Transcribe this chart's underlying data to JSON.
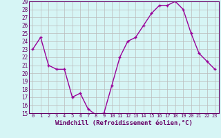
{
  "x": [
    0,
    1,
    2,
    3,
    4,
    5,
    6,
    7,
    8,
    9,
    10,
    11,
    12,
    13,
    14,
    15,
    16,
    17,
    18,
    19,
    20,
    21,
    22,
    23
  ],
  "y": [
    23.0,
    24.5,
    21.0,
    20.5,
    20.5,
    17.0,
    17.5,
    15.5,
    14.8,
    15.0,
    18.5,
    22.0,
    24.0,
    24.5,
    26.0,
    27.5,
    28.5,
    28.5,
    29.0,
    28.0,
    25.0,
    22.5,
    21.5,
    20.5
  ],
  "line_color": "#990099",
  "marker": "+",
  "markersize": 3,
  "linewidth": 1.0,
  "markeredgewidth": 1.0,
  "xlabel": "Windchill (Refroidissement éolien,°C)",
  "ylim": [
    15,
    29
  ],
  "xlim": [
    -0.5,
    23.5
  ],
  "yticks": [
    15,
    16,
    17,
    18,
    19,
    20,
    21,
    22,
    23,
    24,
    25,
    26,
    27,
    28,
    29
  ],
  "xticks": [
    0,
    1,
    2,
    3,
    4,
    5,
    6,
    7,
    8,
    9,
    10,
    11,
    12,
    13,
    14,
    15,
    16,
    17,
    18,
    19,
    20,
    21,
    22,
    23
  ],
  "bg_color": "#d6f5f5",
  "grid_color": "#bbbbbb",
  "line_border_color": "#660066",
  "tick_label_color": "#660066",
  "xlabel_fontsize": 6.5,
  "ytick_fontsize": 5.5,
  "xtick_fontsize": 5.0
}
